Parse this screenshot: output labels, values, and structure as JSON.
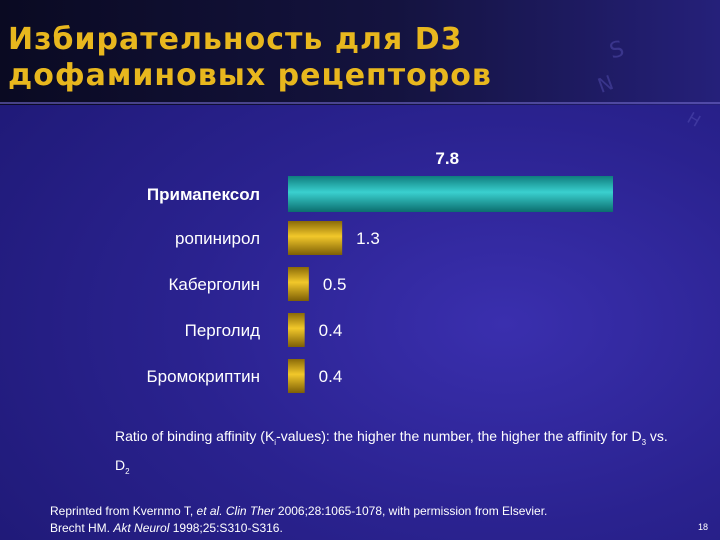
{
  "slide": {
    "title_line1": "Избирательность для D3",
    "title_line2": "дофаминовых рецепторов",
    "page_number": "18",
    "deco_letters": [
      "S",
      "N",
      "H"
    ]
  },
  "note": {
    "part1": "Ratio of binding affinity (K",
    "sub1": "i",
    "part2": "-values): the higher the number, the higher the affinity for D",
    "sub2": "3",
    "part3": " vs. D",
    "sub3": "2"
  },
  "reference": {
    "l1_a": "Reprinted from Kvernmo T, ",
    "l1_italic1": "et al.",
    "l1_space": " ",
    "l1_italic2": "Clin Ther",
    "l1_b": " 2006;28:1065-1078, with permission from Elsevier.",
    "l2_a": "Brecht HM. ",
    "l2_italic": "Akt Neurol",
    "l2_b": " 1998;25:S310-S316."
  },
  "chart_data": {
    "type": "bar",
    "orientation": "horizontal",
    "categories": [
      "Примапексол",
      "ропинирол",
      "Каберголин",
      "Перголид",
      "Бромокриптин"
    ],
    "values": [
      7.8,
      1.3,
      0.5,
      0.4,
      0.4
    ],
    "value_labels": [
      "7.8",
      "1.3",
      "0.5",
      "0.4",
      "0.4"
    ],
    "xlim": [
      0,
      7.8
    ],
    "grid": false,
    "colors": {
      "highlight": "#1fb2b2",
      "default": "#d4a514",
      "text": "#ffffff"
    }
  }
}
